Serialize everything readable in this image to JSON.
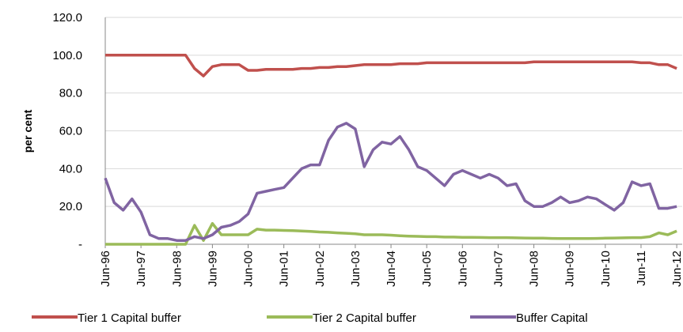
{
  "chart_data": {
    "type": "line",
    "y_label": "per cent",
    "x": [
      1996.417,
      1996.667,
      1996.917,
      1997.167,
      1997.417,
      1997.667,
      1997.917,
      1998.167,
      1998.417,
      1998.667,
      1998.917,
      1999.167,
      1999.417,
      1999.667,
      1999.917,
      2000.167,
      2000.417,
      2000.667,
      2000.917,
      2001.167,
      2001.417,
      2001.667,
      2001.917,
      2002.167,
      2002.417,
      2002.667,
      2002.917,
      2003.167,
      2003.417,
      2003.667,
      2003.917,
      2004.167,
      2004.417,
      2004.667,
      2004.917,
      2005.167,
      2005.417,
      2005.667,
      2005.917,
      2006.167,
      2006.417,
      2006.667,
      2006.917,
      2007.167,
      2007.417,
      2007.667,
      2007.917,
      2008.167,
      2008.417,
      2008.667,
      2008.917,
      2009.167,
      2009.417,
      2009.667,
      2009.917,
      2010.167,
      2010.417,
      2010.667,
      2010.917,
      2011.167,
      2011.417,
      2011.667,
      2011.917,
      2012.167,
      2012.417
    ],
    "series": [
      {
        "name": "Tier 1 Capital buffer",
        "color": "#c0504d",
        "values": [
          100,
          100,
          100,
          100,
          100,
          100,
          100,
          100,
          100,
          100,
          93,
          89,
          94,
          95,
          95,
          95,
          92,
          92,
          92.5,
          92.5,
          92.5,
          92.5,
          93,
          93,
          93.5,
          93.5,
          94,
          94,
          94.5,
          95,
          95,
          95,
          95,
          95.5,
          95.5,
          95.5,
          96,
          96,
          96,
          96,
          96,
          96,
          96,
          96,
          96,
          96,
          96,
          96,
          96.5,
          96.5,
          96.5,
          96.5,
          96.5,
          96.5,
          96.5,
          96.5,
          96.5,
          96.5,
          96.5,
          96.5,
          96,
          96,
          95,
          95,
          93
        ]
      },
      {
        "name": "Tier 2 Capital buffer",
        "color": "#9bbb59",
        "values": [
          0,
          0,
          0,
          0,
          0,
          0,
          0,
          0,
          0,
          0,
          10,
          2,
          11,
          5,
          5,
          5,
          5,
          8,
          7.5,
          7.5,
          7.3,
          7.2,
          7,
          6.8,
          6.5,
          6.3,
          6,
          5.8,
          5.5,
          5,
          5,
          5,
          4.8,
          4.5,
          4.3,
          4.2,
          4,
          4,
          3.8,
          3.8,
          3.7,
          3.7,
          3.6,
          3.5,
          3.5,
          3.5,
          3.4,
          3.3,
          3.2,
          3.2,
          3.1,
          3,
          3,
          3,
          3,
          3.1,
          3.2,
          3.3,
          3.4,
          3.5,
          3.5,
          4,
          6,
          5,
          7
        ]
      },
      {
        "name": "Buffer Capital",
        "color": "#8064a2",
        "values": [
          35,
          22,
          18,
          24,
          17,
          5,
          3,
          3,
          2,
          2,
          4,
          3,
          5,
          9,
          10,
          12,
          16,
          27,
          28,
          29,
          30,
          35,
          40,
          42,
          42,
          55,
          62,
          64,
          61,
          41,
          50,
          54,
          53,
          57,
          50,
          41,
          39,
          35,
          31,
          37,
          39,
          37,
          35,
          37,
          35,
          31,
          32,
          23,
          20,
          20,
          22,
          25,
          22,
          23,
          25,
          24,
          21,
          18,
          22,
          33,
          31,
          32,
          19,
          19,
          20
        ]
      }
    ],
    "xlim": [
      1996.417,
      2012.57
    ],
    "xticks": [
      {
        "value": 1996.417,
        "label": "Jun-96"
      },
      {
        "value": 1997.417,
        "label": "Jun-97"
      },
      {
        "value": 1998.417,
        "label": "Jun-98"
      },
      {
        "value": 1999.417,
        "label": "Jun-99"
      },
      {
        "value": 2000.417,
        "label": "Jun-00"
      },
      {
        "value": 2001.417,
        "label": "Jun-01"
      },
      {
        "value": 2002.417,
        "label": "Jun-02"
      },
      {
        "value": 2003.417,
        "label": "Jun-03"
      },
      {
        "value": 2004.417,
        "label": "Jun-04"
      },
      {
        "value": 2005.417,
        "label": "Jun-05"
      },
      {
        "value": 2006.417,
        "label": "Jun-06"
      },
      {
        "value": 2007.417,
        "label": "Jun-07"
      },
      {
        "value": 2008.417,
        "label": "Jun-08"
      },
      {
        "value": 2009.417,
        "label": "Jun-09"
      },
      {
        "value": 2010.417,
        "label": "Jun-10"
      },
      {
        "value": 2011.417,
        "label": "Jun-11"
      },
      {
        "value": 2012.417,
        "label": "Jun-12"
      }
    ],
    "ylim": [
      0,
      120
    ],
    "yticks": [
      {
        "value": 0,
        "label": "-"
      },
      {
        "value": 20,
        "label": "20.0"
      },
      {
        "value": 40,
        "label": "40.0"
      },
      {
        "value": 60,
        "label": "60.0"
      },
      {
        "value": 80,
        "label": "80.0"
      },
      {
        "value": 100,
        "label": "100.0"
      },
      {
        "value": 120,
        "label": "120.0"
      }
    ],
    "grid": true,
    "legend": "bottom"
  }
}
